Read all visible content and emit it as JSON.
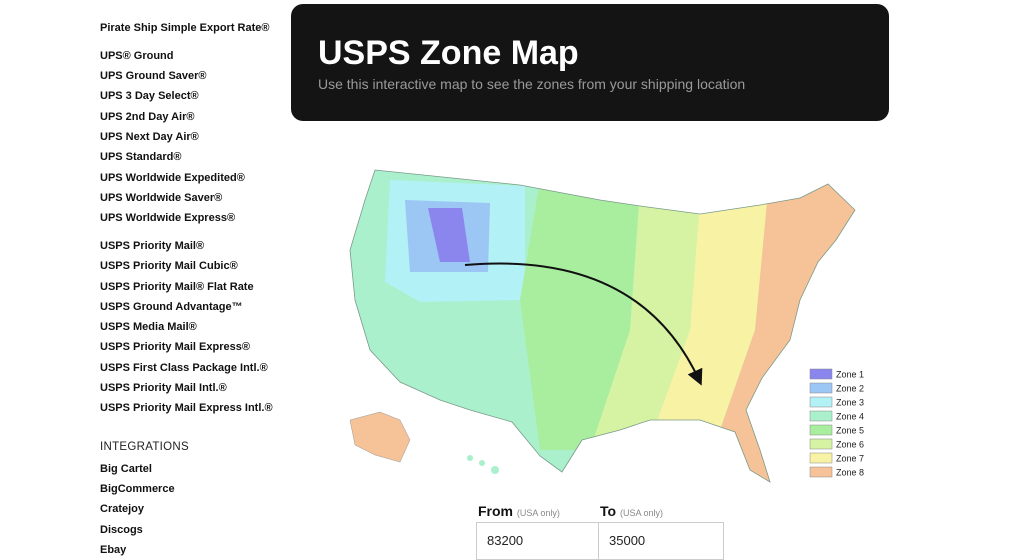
{
  "sidebar": {
    "groups": [
      [
        "Pirate Ship Simple Export Rate®"
      ],
      [
        "UPS® Ground",
        "UPS Ground Saver®",
        "UPS 3 Day Select®",
        "UPS 2nd Day Air®",
        "UPS Next Day Air®",
        "UPS Standard®",
        "UPS Worldwide Expedited®",
        "UPS Worldwide Saver®",
        "UPS Worldwide Express®"
      ],
      [
        "USPS Priority Mail®",
        "USPS Priority Mail Cubic®",
        "USPS Priority Mail® Flat Rate",
        "USPS Ground Advantage™",
        "USPS Media Mail®",
        "USPS Priority Mail Express®",
        "USPS First Class Package Intl.®",
        "USPS Priority Mail Intl.®",
        "USPS Priority Mail Express Intl.®"
      ]
    ],
    "integrations_heading": "INTEGRATIONS",
    "integrations": [
      "Big Cartel",
      "BigCommerce",
      "Cratejoy",
      "Discogs",
      "Ebay"
    ]
  },
  "header": {
    "title": "USPS Zone Map",
    "subtitle": "Use this interactive map to see the zones from your shipping location"
  },
  "legend": [
    {
      "label": "Zone 1",
      "color": "#8a86ee"
    },
    {
      "label": "Zone 2",
      "color": "#9cc6f4"
    },
    {
      "label": "Zone 3",
      "color": "#b2f1f6"
    },
    {
      "label": "Zone 4",
      "color": "#aaf0cc"
    },
    {
      "label": "Zone 5",
      "color": "#a9ee9f"
    },
    {
      "label": "Zone 6",
      "color": "#d5f3a2"
    },
    {
      "label": "Zone 7",
      "color": "#f8f2a4"
    },
    {
      "label": "Zone 8",
      "color": "#f6c297"
    }
  ],
  "form": {
    "from_label": "From",
    "from_note": "(USA only)",
    "from_value": "83200",
    "to_label": "To",
    "to_note": "(USA only)",
    "to_value": "35000"
  }
}
